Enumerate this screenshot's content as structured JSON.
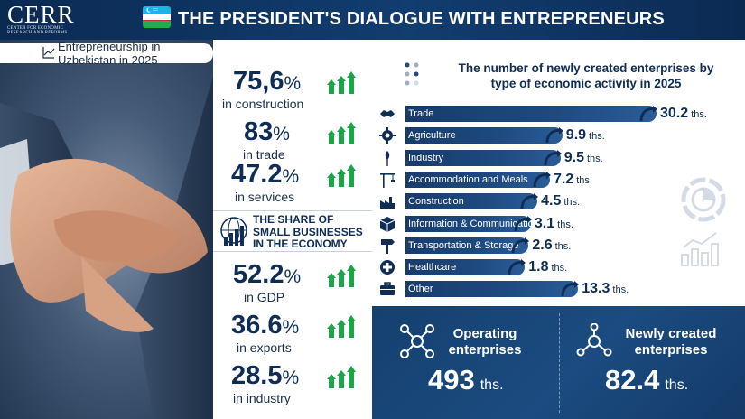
{
  "header": {
    "logo_text": "CERR",
    "logo_subtext": "CENTER FOR ECONOMIC RESEARCH AND REFORMS",
    "title": "THE PRESIDENT'S DIALOGUE WITH ENTREPRENEURS"
  },
  "subtitle": "Entrepreneurship in Uzbekistan in 2025",
  "stats_top": [
    {
      "value": "75,6",
      "pct": "%",
      "label": "in construction"
    },
    {
      "value": "83",
      "pct": "%",
      "label": "in trade"
    },
    {
      "value": "47.2",
      "pct": "%",
      "label": "in services"
    }
  ],
  "share_title": "THE SHARE OF SMALL BUSINESSES IN THE ECONOMY",
  "share_lines": [
    "THE SHARE OF",
    "SMALL BUSINESSES",
    "IN THE ECONOMY"
  ],
  "stats_bottom": [
    {
      "value": "52.2",
      "pct": "%",
      "label": "in GDP"
    },
    {
      "value": "36.6",
      "pct": "%",
      "label": "in exports"
    },
    {
      "value": "28.5",
      "pct": "%",
      "label": "in industry"
    }
  ],
  "chart_data": {
    "type": "bar",
    "title": "The number of newly created enterprises by type of economic activity in 2025",
    "title_lines": [
      "The number of newly created enterprises by",
      "type of economic activity in 2025"
    ],
    "categories": [
      "Trade",
      "Agriculture",
      "Industry",
      "Accommodation and Meals",
      "Construction",
      "Information & Communication",
      "Transportation & Storage",
      "Healthcare",
      "Other"
    ],
    "values": [
      30.2,
      9.9,
      9.5,
      7.2,
      4.5,
      3.1,
      2.6,
      1.8,
      13.3
    ],
    "value_labels": [
      "30.2",
      "9.9",
      "9.5",
      "7.2",
      "4.5",
      "3.1",
      "2.6",
      "1.8",
      "13.3"
    ],
    "unit": "ths.",
    "icons": [
      "handshake-icon",
      "gear-icon",
      "wheat-icon",
      "crane-icon",
      "factory-icon",
      "box-icon",
      "road-sign-icon",
      "medical-cross-icon",
      "briefcase-icon"
    ]
  },
  "summary": {
    "operating": {
      "title_lines": [
        "Operating",
        "enterprises"
      ],
      "value": "493",
      "unit": "ths."
    },
    "new": {
      "title_lines": [
        "Newly created",
        "enterprises"
      ],
      "value": "82.4",
      "unit": "ths."
    }
  },
  "colors": {
    "navy": "#0f2d55",
    "bar": "#1e4a80",
    "arrow_green": "#1fa34a",
    "flag_blue": "#1eb3e6",
    "flag_green": "#1fae4b"
  }
}
